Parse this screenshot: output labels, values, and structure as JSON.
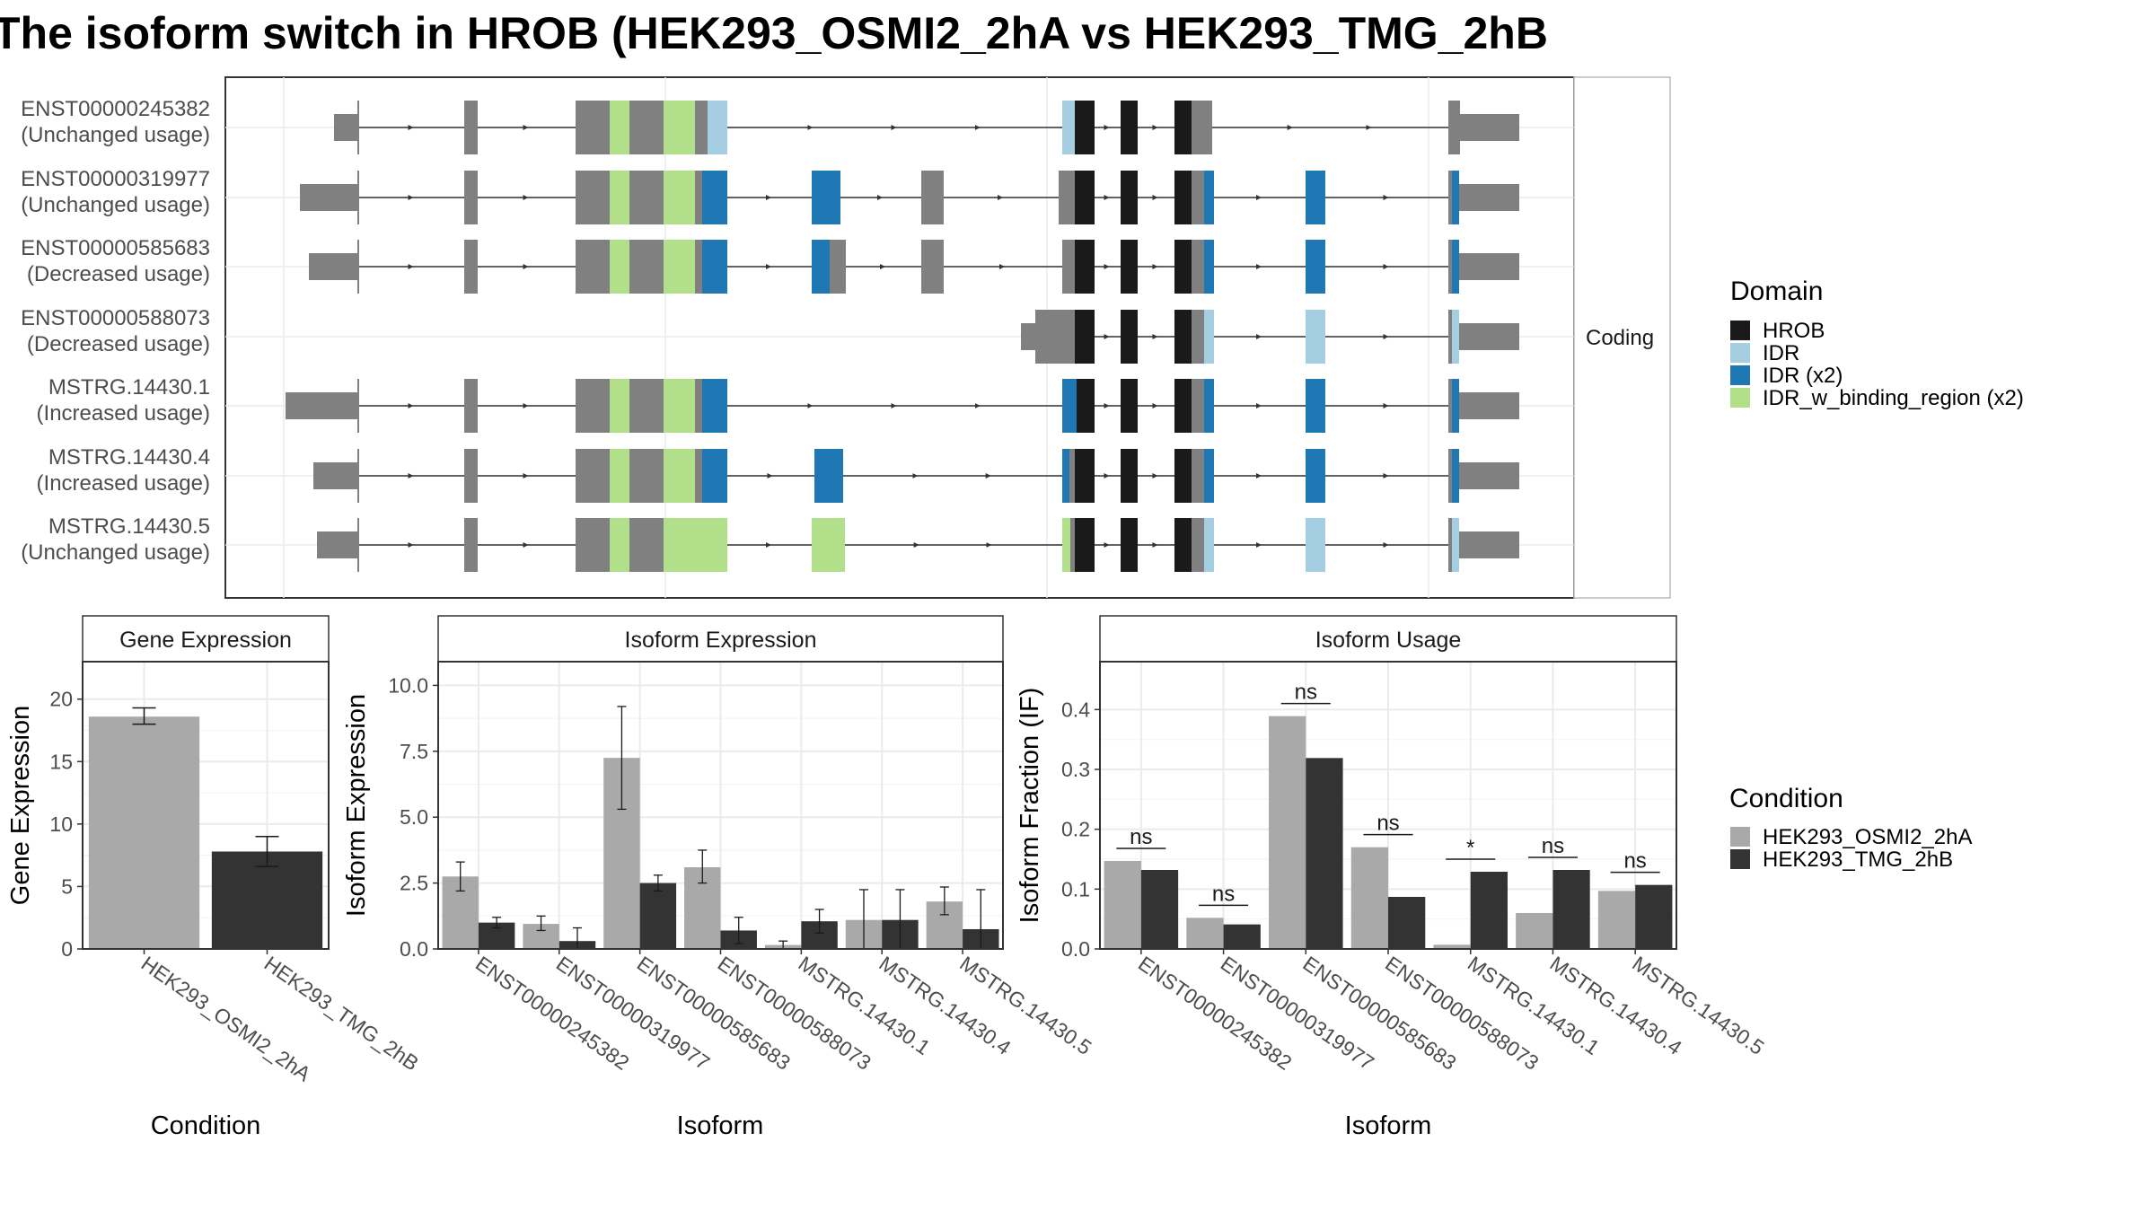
{
  "title": "The isoform switch in HROB (HEK293_OSMI2_2hA vs HEK293_TMG_2hB",
  "structure": {
    "strip_label": "Coding",
    "isoforms": [
      {
        "id": "ENST00000245382",
        "usage": "(Unchanged usage)"
      },
      {
        "id": "ENST00000319977",
        "usage": "(Unchanged usage)"
      },
      {
        "id": "ENST00000585683",
        "usage": "(Decreased usage)"
      },
      {
        "id": "ENST00000588073",
        "usage": "(Decreased usage)"
      },
      {
        "id": "MSTRG.14430.1",
        "usage": "(Increased usage)"
      },
      {
        "id": "MSTRG.14430.4",
        "usage": "(Increased usage)"
      },
      {
        "id": "MSTRG.14430.5",
        "usage": "(Unchanged usage)"
      }
    ]
  },
  "legend_domain": {
    "title": "Domain",
    "items": [
      {
        "label": "HROB",
        "color": "#1a1a1a"
      },
      {
        "label": "IDR",
        "color": "#a6cee3"
      },
      {
        "label": "IDR (x2)",
        "color": "#1f78b4"
      },
      {
        "label": "IDR_w_binding_region (x2)",
        "color": "#b2df8a"
      }
    ]
  },
  "legend_condition": {
    "title": "Condition",
    "items": [
      {
        "label": "HEK293_OSMI2_2hA",
        "color": "#a9a9a9"
      },
      {
        "label": "HEK293_TMG_2hB",
        "color": "#333333"
      }
    ]
  },
  "chart_data": [
    {
      "type": "bar",
      "title": "Gene Expression",
      "xlabel": "Condition",
      "ylabel": "Gene Expression",
      "ylim": [
        0,
        23
      ],
      "yticks": [
        0,
        5,
        10,
        15,
        20
      ],
      "categories": [
        "HEK293_OSMI2_2hA",
        "HEK293_TMG_2hB"
      ],
      "values": [
        18.6,
        7.8
      ],
      "errors": [
        [
          18.0,
          19.3
        ],
        [
          6.6,
          9.0
        ]
      ]
    },
    {
      "type": "bar",
      "title": "Isoform Expression",
      "xlabel": "Isoform",
      "ylabel": "Isoform Expression",
      "ylim": [
        0,
        10.9
      ],
      "yticks": [
        "0.0",
        "2.5",
        "5.0",
        "7.5",
        "10.0"
      ],
      "categories": [
        "ENST00000245382",
        "ENST00000319977",
        "ENST00000585683",
        "ENST00000588073",
        "MSTRG.14430.1",
        "MSTRG.14430.4",
        "MSTRG.14430.5"
      ],
      "series": [
        {
          "name": "HEK293_OSMI2_2hA",
          "values": [
            2.75,
            0.95,
            7.25,
            3.1,
            0.15,
            1.1,
            1.8
          ],
          "errors": [
            [
              2.2,
              3.3
            ],
            [
              0.7,
              1.25
            ],
            [
              5.3,
              9.2
            ],
            [
              2.5,
              3.75
            ],
            [
              0.0,
              0.3
            ],
            [
              0.0,
              2.25
            ],
            [
              1.3,
              2.35
            ]
          ]
        },
        {
          "name": "HEK293_TMG_2hB",
          "values": [
            1.0,
            0.3,
            2.5,
            0.7,
            1.05,
            1.1,
            0.75
          ],
          "errors": [
            [
              0.8,
              1.2
            ],
            [
              0.0,
              0.8
            ],
            [
              2.2,
              2.8
            ],
            [
              0.2,
              1.2
            ],
            [
              0.6,
              1.5
            ],
            [
              0.0,
              2.25
            ],
            [
              0.0,
              2.25
            ]
          ]
        }
      ]
    },
    {
      "type": "bar",
      "title": "Isoform Usage",
      "xlabel": "Isoform",
      "ylabel": "Isoform Fraction (IF)",
      "ylim": [
        0,
        0.48
      ],
      "yticks": [
        "0.0",
        "0.1",
        "0.2",
        "0.3",
        "0.4"
      ],
      "categories": [
        "ENST00000245382",
        "ENST00000319977",
        "ENST00000585683",
        "ENST00000588073",
        "MSTRG.14430.1",
        "MSTRG.14430.4",
        "MSTRG.14430.5"
      ],
      "series": [
        {
          "name": "HEK293_OSMI2_2hA",
          "values": [
            0.147,
            0.052,
            0.389,
            0.17,
            0.007,
            0.06,
            0.097
          ]
        },
        {
          "name": "HEK293_TMG_2hB",
          "values": [
            0.132,
            0.041,
            0.319,
            0.087,
            0.129,
            0.132,
            0.107
          ]
        }
      ],
      "significance": [
        "ns",
        "ns",
        "ns",
        "ns",
        "*",
        "ns",
        "ns"
      ]
    }
  ]
}
